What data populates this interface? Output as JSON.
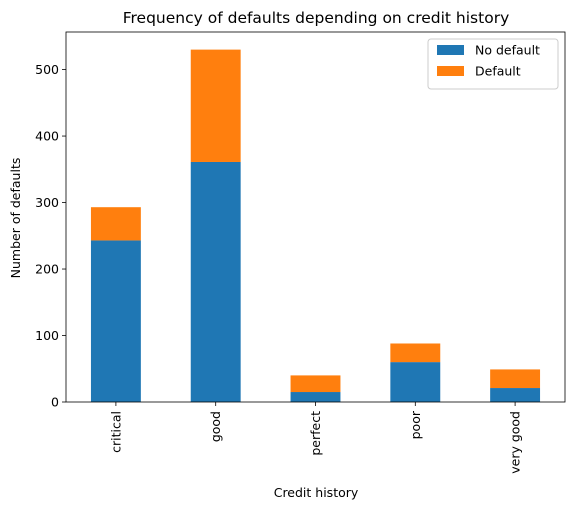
{
  "chart_data": {
    "type": "bar",
    "stacked": true,
    "title": "Frequency of defaults depending on credit history",
    "xlabel": "Credit history",
    "ylabel": "Number of defaults",
    "categories": [
      "critical",
      "good",
      "perfect",
      "poor",
      "very good"
    ],
    "series": [
      {
        "name": "No default",
        "values": [
          243,
          361,
          15,
          60,
          21
        ],
        "color": "#1f77b4"
      },
      {
        "name": "Default",
        "values": [
          50,
          169,
          25,
          28,
          28
        ],
        "color": "#ff7f0e"
      }
    ],
    "ylim": [
      0,
      556.5
    ],
    "yticks": [
      0,
      100,
      200,
      300,
      400,
      500
    ],
    "grid": false,
    "legend": "top-right"
  }
}
